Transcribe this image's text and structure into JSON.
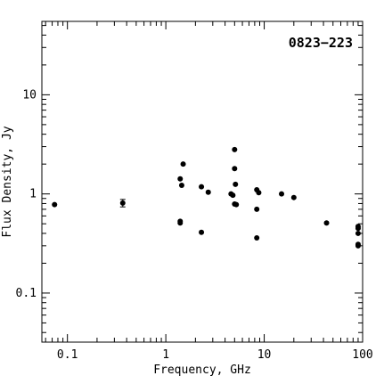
{
  "chart_data": {
    "type": "scatter",
    "title": "0823−223",
    "xlabel": "Frequency, GHz",
    "ylabel": "Flux Density, Jy",
    "x_scale": "log",
    "y_scale": "log",
    "xlim": [
      0.055,
      100
    ],
    "ylim": [
      0.032,
      55
    ],
    "x_ticks": [
      {
        "value": 0.1,
        "label": "0.1"
      },
      {
        "value": 1,
        "label": "1"
      },
      {
        "value": 10,
        "label": "10"
      },
      {
        "value": 100,
        "label": "100"
      }
    ],
    "y_ticks": [
      {
        "value": 0.1,
        "label": "0.1"
      },
      {
        "value": 1,
        "label": "1"
      },
      {
        "value": 10,
        "label": "10"
      }
    ],
    "grid": false,
    "marker_color": "#000000",
    "points": [
      {
        "x": 0.074,
        "y": 0.78
      },
      {
        "x": 0.365,
        "y": 0.81,
        "err_low": 0.74,
        "err_high": 0.88
      },
      {
        "x": 1.4,
        "y": 1.42
      },
      {
        "x": 1.4,
        "y": 0.53
      },
      {
        "x": 1.4,
        "y": 0.51
      },
      {
        "x": 1.45,
        "y": 1.22
      },
      {
        "x": 1.5,
        "y": 2.0
      },
      {
        "x": 2.3,
        "y": 1.18
      },
      {
        "x": 2.3,
        "y": 0.41
      },
      {
        "x": 2.7,
        "y": 1.04
      },
      {
        "x": 4.6,
        "y": 1.0
      },
      {
        "x": 4.8,
        "y": 0.97
      },
      {
        "x": 5.0,
        "y": 2.8
      },
      {
        "x": 5.0,
        "y": 1.8
      },
      {
        "x": 5.0,
        "y": 0.79
      },
      {
        "x": 5.1,
        "y": 1.25
      },
      {
        "x": 5.2,
        "y": 0.78
      },
      {
        "x": 8.4,
        "y": 1.1
      },
      {
        "x": 8.4,
        "y": 0.7
      },
      {
        "x": 8.4,
        "y": 0.36
      },
      {
        "x": 8.8,
        "y": 1.03
      },
      {
        "x": 15,
        "y": 1.0
      },
      {
        "x": 20,
        "y": 0.92
      },
      {
        "x": 43,
        "y": 0.51
      },
      {
        "x": 90,
        "y": 0.47
      },
      {
        "x": 90,
        "y": 0.45
      },
      {
        "x": 90,
        "y": 0.4
      },
      {
        "x": 90,
        "y": 0.31
      },
      {
        "x": 90,
        "y": 0.3
      }
    ]
  }
}
